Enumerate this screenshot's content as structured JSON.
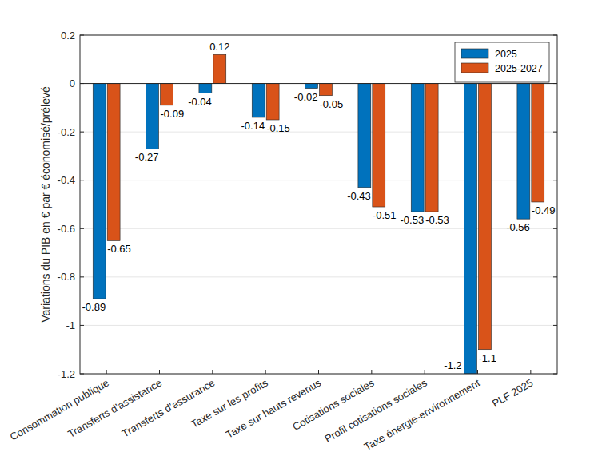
{
  "chart_data": {
    "type": "bar",
    "ylabel": "Variations du PIB en € par € économisé/prélevé",
    "categories": [
      "Consommation publique",
      "Transferts d’assistance",
      "Transferts d’assurance",
      "Taxe sur les profits",
      "Taxe sur hauts revenus",
      "Cotisations sociales",
      "Profil cotisations sociales",
      "Taxe énergie-environnement",
      "PLF 2025"
    ],
    "series": [
      {
        "name": "2025",
        "color": "#0072BD",
        "values": [
          -0.89,
          -0.27,
          -0.04,
          -0.14,
          -0.02,
          -0.43,
          -0.53,
          -1.2,
          -0.56
        ]
      },
      {
        "name": "2025-2027",
        "color": "#D95319",
        "values": [
          -0.65,
          -0.09,
          0.12,
          -0.15,
          -0.05,
          -0.51,
          -0.53,
          -1.1,
          -0.49
        ]
      }
    ],
    "ylim": [
      -1.2,
      0.2
    ],
    "yticks": [
      -1.2,
      -1,
      -0.8,
      -0.6,
      -0.4,
      -0.2,
      0,
      0.2
    ],
    "grid": true,
    "legend": "northeast",
    "data_labels": true
  }
}
